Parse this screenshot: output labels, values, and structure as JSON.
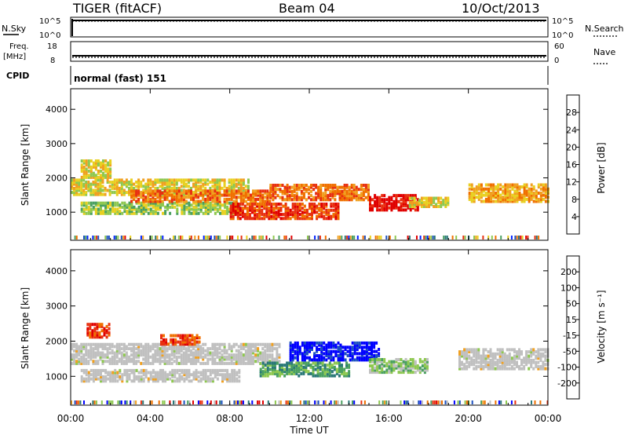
{
  "header": {
    "station": "TIGER (fitACF)",
    "beam": "Beam 04",
    "date": "10/Oct/2013"
  },
  "strips": {
    "nsky": {
      "label": "N.Sky",
      "ticks": [
        "10^5",
        "10^0"
      ]
    },
    "nsearch": {
      "label": "N.Search",
      "ticks": [
        "10^5",
        "10^0"
      ]
    },
    "freq": {
      "label_top": "Freq.",
      "label_unit": "[MHz]",
      "ticks": [
        "18",
        "8"
      ]
    },
    "nave": {
      "label": "Nave",
      "ticks": [
        "60",
        "0"
      ]
    },
    "cpid": {
      "label": "CPID",
      "value": "normal (fast) 151"
    }
  },
  "time_axis": {
    "label": "Time UT",
    "ticks": [
      "00:00",
      "04:00",
      "08:00",
      "12:00",
      "16:00",
      "20:00",
      "00:00"
    ]
  },
  "chart_data": [
    {
      "type": "heatmap",
      "panel": "power",
      "xlabel": "Time UT",
      "ylabel": "Slant Range [km]",
      "x_range_hours": [
        0,
        24
      ],
      "ylim": [
        180,
        4600
      ],
      "y_ticks": [
        1000,
        2000,
        3000,
        4000
      ],
      "colorbar": {
        "label": "Power [dB]",
        "ticks": [
          4,
          8,
          12,
          16,
          20,
          24,
          28
        ],
        "range": [
          0,
          32
        ],
        "colors": [
          "#0020ff",
          "#1c50c0",
          "#2a7878",
          "#4aa060",
          "#8ec850",
          "#e8d020",
          "#f0a020",
          "#f07000",
          "#e83010",
          "#e00000"
        ]
      },
      "echo_bands": [
        {
          "t_start": 0.0,
          "t_end": 9.0,
          "r_low": 1500,
          "r_high": 1950,
          "level": 0.6
        },
        {
          "t_start": 0.5,
          "t_end": 8.5,
          "r_low": 950,
          "r_high": 1300,
          "level": 0.45
        },
        {
          "t_start": 3.0,
          "t_end": 10.0,
          "r_low": 1300,
          "r_high": 1650,
          "level": 0.75
        },
        {
          "t_start": 8.0,
          "t_end": 13.5,
          "r_low": 800,
          "r_high": 1250,
          "level": 0.85
        },
        {
          "t_start": 10.0,
          "t_end": 15.0,
          "r_low": 1350,
          "r_high": 1800,
          "level": 0.8
        },
        {
          "t_start": 15.0,
          "t_end": 17.5,
          "r_low": 1050,
          "r_high": 1500,
          "level": 0.95
        },
        {
          "t_start": 17.0,
          "t_end": 19.0,
          "r_low": 1150,
          "r_high": 1450,
          "level": 0.55
        },
        {
          "t_start": 20.0,
          "t_end": 24.0,
          "r_low": 1300,
          "r_high": 1800,
          "level": 0.7
        },
        {
          "t_start": 0.5,
          "t_end": 2.0,
          "r_low": 2000,
          "r_high": 2500,
          "level": 0.6
        }
      ]
    },
    {
      "type": "heatmap",
      "panel": "velocity",
      "xlabel": "Time UT",
      "ylabel": "Slant Range [km]",
      "x_range_hours": [
        0,
        24
      ],
      "ylim": [
        180,
        4600
      ],
      "y_ticks": [
        1000,
        2000,
        3000,
        4000
      ],
      "colorbar": {
        "label": "Velocity [m s⁻¹]",
        "ticks": [
          200,
          100,
          50,
          15,
          -15,
          -50,
          -100,
          -200
        ],
        "colors": [
          "#0000ff",
          "#1c50c0",
          "#2a7878",
          "#4aa060",
          "#8ec850",
          "#c0c0c0",
          "#f0a020",
          "#f07000",
          "#e83010",
          "#e00000"
        ]
      },
      "echo_bands": [
        {
          "t_start": 0.0,
          "t_end": 10.5,
          "r_low": 1350,
          "r_high": 1900,
          "velocity": 0
        },
        {
          "t_start": 0.5,
          "t_end": 8.5,
          "r_low": 850,
          "r_high": 1200,
          "velocity": -5
        },
        {
          "t_start": 11.0,
          "t_end": 15.5,
          "r_low": 1450,
          "r_high": 1950,
          "velocity": 180
        },
        {
          "t_start": 9.5,
          "t_end": 14.0,
          "r_low": 1000,
          "r_high": 1400,
          "velocity": 40
        },
        {
          "t_start": 15.0,
          "t_end": 18.0,
          "r_low": 1100,
          "r_high": 1500,
          "velocity": 30
        },
        {
          "t_start": 19.5,
          "t_end": 24.0,
          "r_low": 1200,
          "r_high": 1800,
          "velocity": 0
        },
        {
          "t_start": 0.8,
          "t_end": 2.0,
          "r_low": 2100,
          "r_high": 2500,
          "velocity": -180
        },
        {
          "t_start": 4.5,
          "t_end": 6.5,
          "r_low": 1900,
          "r_high": 2150,
          "velocity": -150
        }
      ]
    }
  ]
}
